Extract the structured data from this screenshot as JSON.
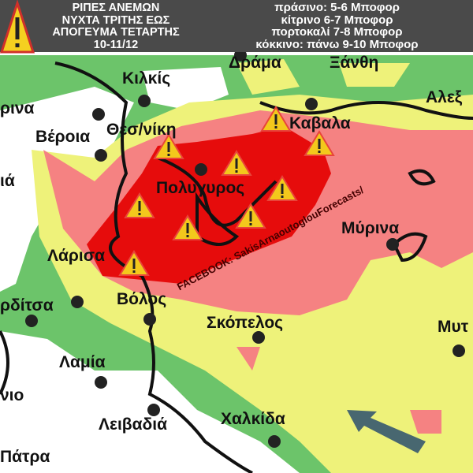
{
  "header": {
    "title_lines": [
      "ΡΙΠΕΣ ΑΝΕΜΩΝ",
      "ΝΥΧΤΑ ΤΡΙΤΗΣ ΕΩΣ",
      "ΑΠΟΓΕΥΜΑ ΤΕΤΑΡΤΗΣ",
      "10-11/12"
    ],
    "legend_lines": [
      "πράσινο: 5-6 Μποφορ",
      "κίτρινο 6-7 Μποφορ",
      "πορτοκαλί 7-8 Μποφορ",
      "κόκκινο: πάνω 9-10 Μποφορ"
    ],
    "icon": "warning-triangle-icon"
  },
  "colors": {
    "green": "#6cc46a",
    "yellow": "#eef27a",
    "pink": "#f58282",
    "red": "#e60c0c",
    "header": "#4a4a4a"
  },
  "places": [
    "ρινα",
    "Κιλκίς",
    "Δράμα",
    "Ξάνθη",
    "Αλεξ",
    "Βέροια",
    "Θεσ/νίκη",
    "Καβαλα",
    "ιά",
    "Πολυγυρος",
    "Μύρινα",
    "Λάρισα",
    "ρδίτσα",
    "Βόλος",
    "Σκόπελος",
    "Μυτ",
    "Λαμία",
    "νιο",
    "Λειβαδιά",
    "Χαλκίδα",
    "Πάτρα"
  ],
  "watermark": "FACEBOOK: SakisArnaoutoglouForecasts/"
}
